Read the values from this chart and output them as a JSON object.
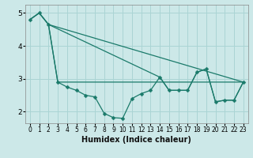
{
  "xlabel": "Humidex (Indice chaleur)",
  "background_color": "#cce8e8",
  "grid_color": "#aad4d4",
  "line_color": "#1a7a6a",
  "xlim": [
    -0.5,
    23.5
  ],
  "ylim": [
    1.65,
    5.25
  ],
  "yticks": [
    2,
    3,
    4,
    5
  ],
  "xticks": [
    0,
    1,
    2,
    3,
    4,
    5,
    6,
    7,
    8,
    9,
    10,
    11,
    12,
    13,
    14,
    15,
    16,
    17,
    18,
    19,
    20,
    21,
    22,
    23
  ],
  "series1_x": [
    0,
    1,
    2,
    3,
    4,
    5,
    6,
    7,
    8,
    9,
    10,
    11,
    12,
    13,
    14,
    15,
    16,
    17,
    18,
    19,
    20,
    21,
    22,
    23
  ],
  "series1_y": [
    4.8,
    5.0,
    4.65,
    2.9,
    2.75,
    2.65,
    2.5,
    2.45,
    1.95,
    1.82,
    1.8,
    2.4,
    2.55,
    2.65,
    3.05,
    2.65,
    2.65,
    2.65,
    3.2,
    3.3,
    2.3,
    2.35,
    2.35,
    2.9
  ],
  "series2_x": [
    0,
    1,
    2,
    3,
    23
  ],
  "series2_y": [
    4.8,
    5.0,
    4.65,
    2.9,
    2.9
  ],
  "series3_x": [
    0,
    1,
    2,
    14,
    15,
    16,
    17,
    18,
    19,
    20,
    21,
    22,
    23
  ],
  "series3_y": [
    4.8,
    5.0,
    4.65,
    3.05,
    2.65,
    2.65,
    2.65,
    3.2,
    3.3,
    2.3,
    2.35,
    2.35,
    2.9
  ],
  "series4_x": [
    2,
    23
  ],
  "series4_y": [
    4.65,
    2.9
  ],
  "lw": 0.9,
  "ms": 2.5
}
